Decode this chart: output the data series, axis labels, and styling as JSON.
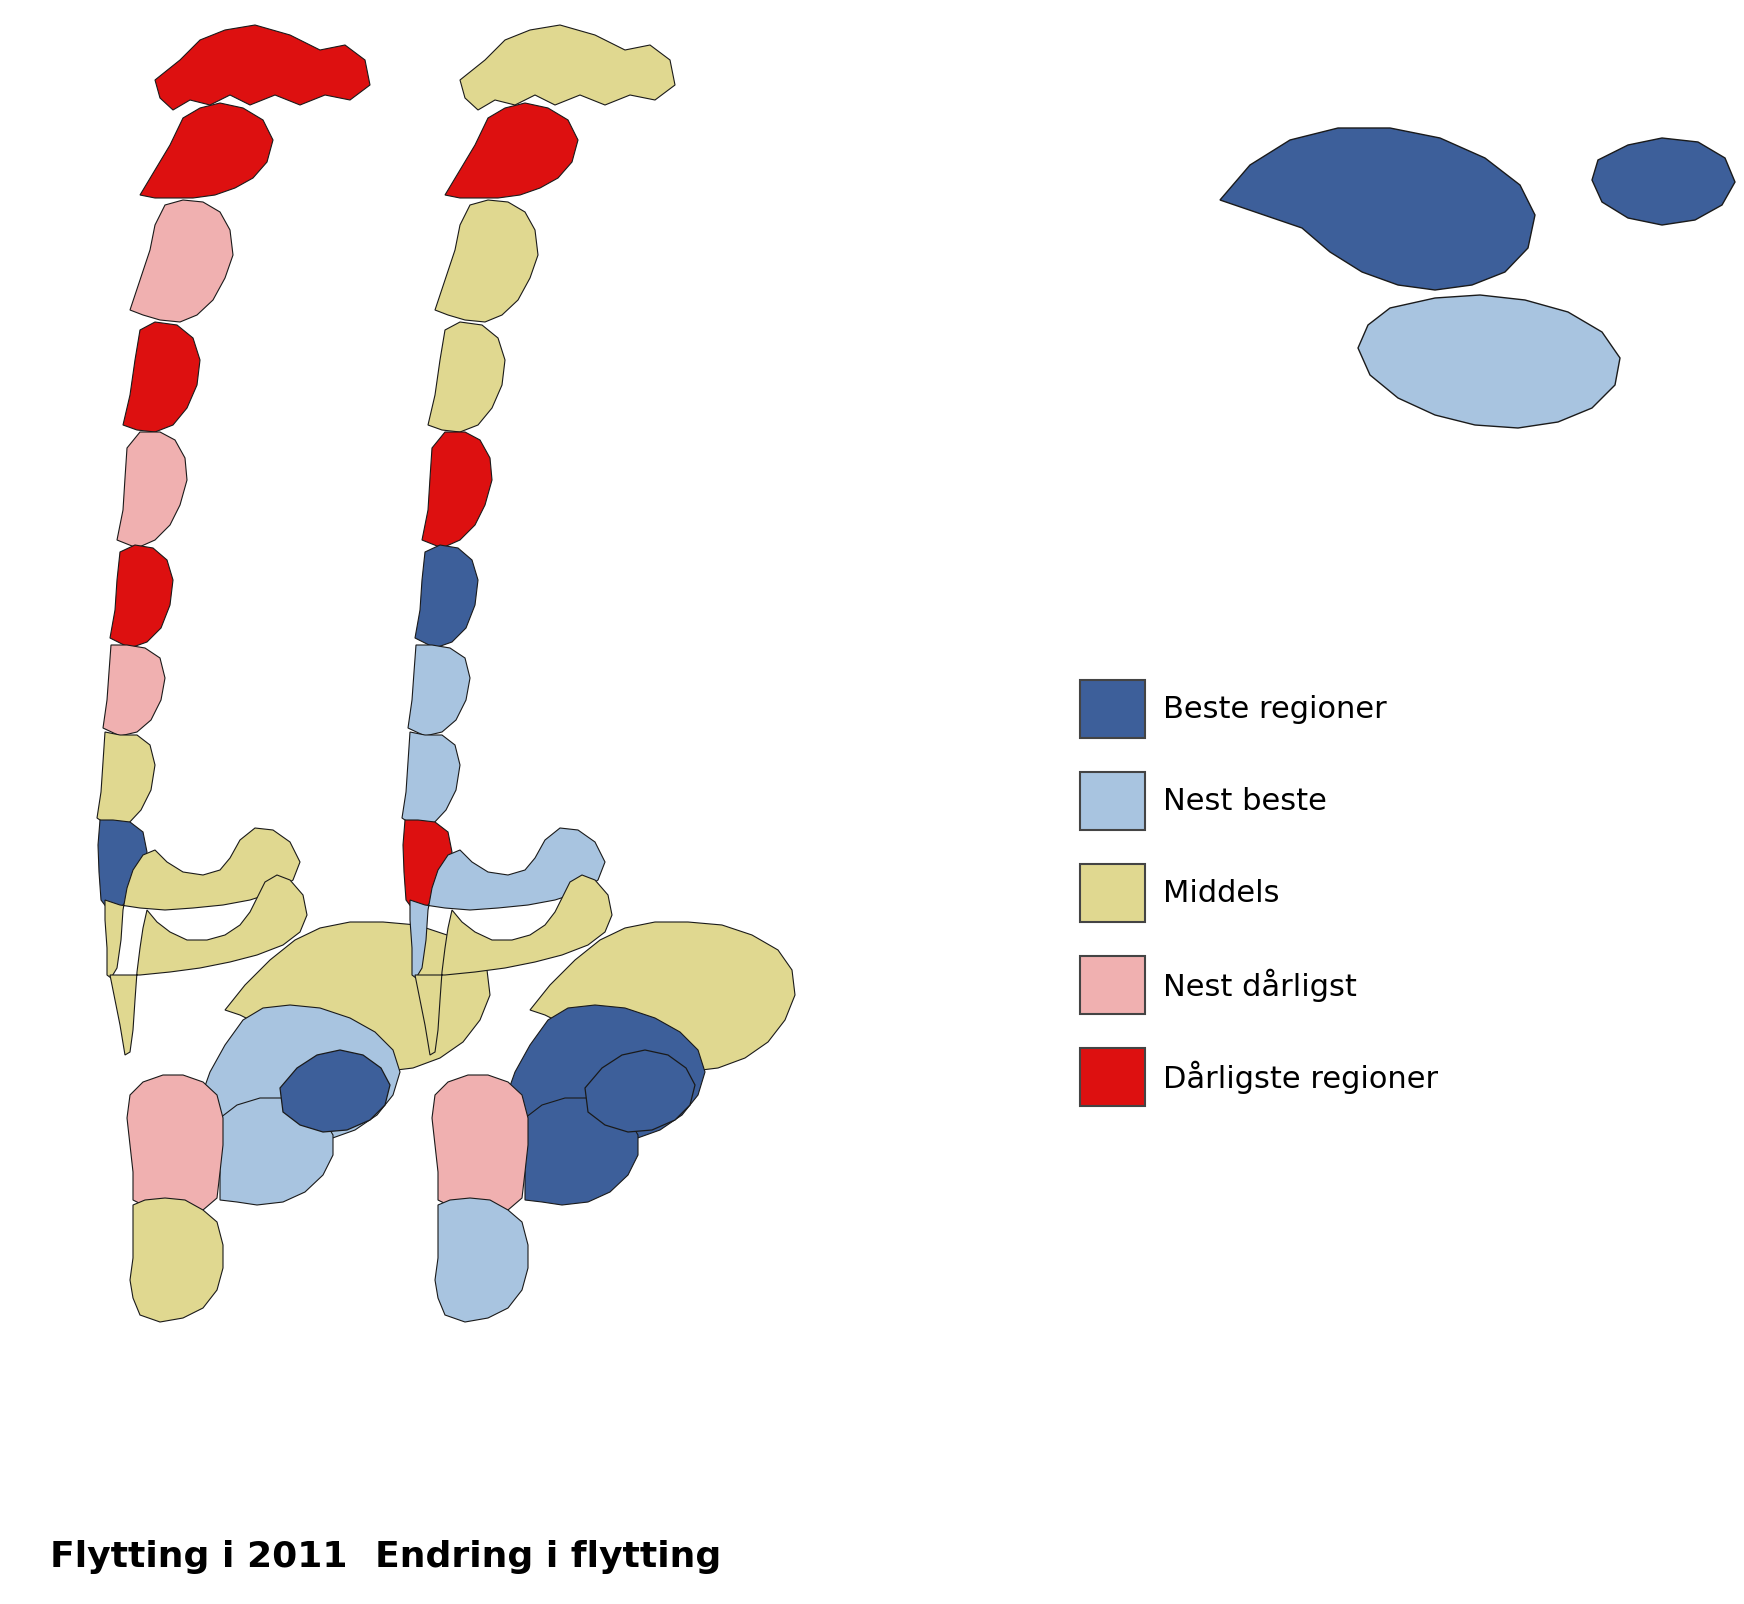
{
  "title": "",
  "labels": {
    "map1": "Flytting i 2011",
    "map2": "Endring i flytting"
  },
  "legend_items": [
    {
      "label": "Beste regioner",
      "color": "#3d5f9a"
    },
    {
      "label": "Nest beste",
      "color": "#a8c4e0"
    },
    {
      "label": "Middels",
      "color": "#e0d890"
    },
    {
      "label": "Nest dårligst",
      "color": "#f0b0b0"
    },
    {
      "label": "Dårligste regioner",
      "color": "#dd1010"
    }
  ],
  "background_color": "#ffffff",
  "label_fontsize": 26,
  "legend_fontsize": 22,
  "figsize": [
    17.44,
    16.04
  ],
  "dpi": 100,
  "edge_color": "#1a1a1a",
  "map1_xoff": 25,
  "map2_xoff": 330,
  "svalbard_xoff": 1080
}
